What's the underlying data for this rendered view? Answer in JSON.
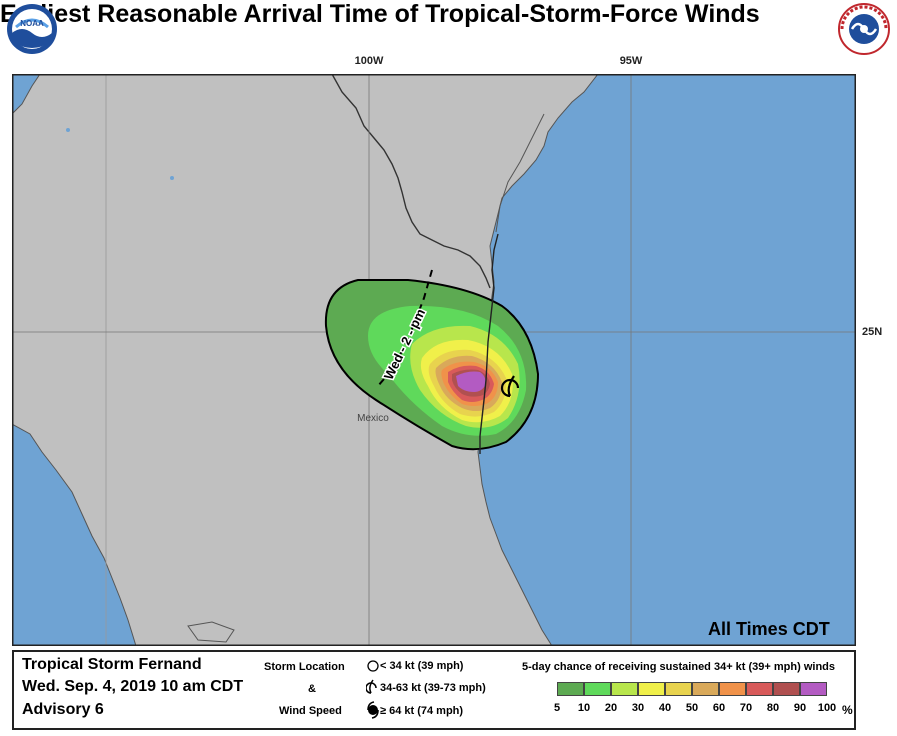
{
  "header": {
    "title": "Earliest Reasonable Arrival Time of Tropical-Storm-Force Winds",
    "left_logo": "noaa-logo",
    "left_logo_text": "NOAA",
    "right_logo": "nws-logo",
    "right_logo_text": "NATIONAL WEATHER SERVICE"
  },
  "map": {
    "longitude_labels": [
      "100W",
      "95W"
    ],
    "latitude_labels": [
      "25N"
    ],
    "place_label": "Mexico",
    "arrival_label": "Wed - 2 - pm",
    "times_note": "All Times CDT",
    "colors": {
      "land": "#c0c0c0",
      "water": "#6fa3d3",
      "border": "#333333"
    }
  },
  "legend": {
    "storm_name": "Tropical Storm Fernand",
    "issued": "Wed. Sep. 4, 2019  10 am CDT",
    "advisory": "Advisory 6",
    "storm_location_title": "Storm Location",
    "amp": "&",
    "wind_speed_title": "Wind Speed",
    "wind_categories": [
      "< 34 kt (39 mph)",
      "34-63 kt (39-73 mph)",
      "≥ 64 kt (74 mph)"
    ],
    "probability_title": "5-day chance of receiving sustained 34+ kt (39+ mph) winds",
    "probability_labels": [
      "5",
      "10",
      "20",
      "30",
      "40",
      "50",
      "60",
      "70",
      "80",
      "90",
      "100"
    ],
    "percent_sign": "%",
    "probability_colors": [
      "#5daa52",
      "#5fd95b",
      "#b8e64c",
      "#f0f04a",
      "#e8d34e",
      "#d9a95a",
      "#f0924a",
      "#d85a5a",
      "#b05050",
      "#b35bc2"
    ]
  }
}
